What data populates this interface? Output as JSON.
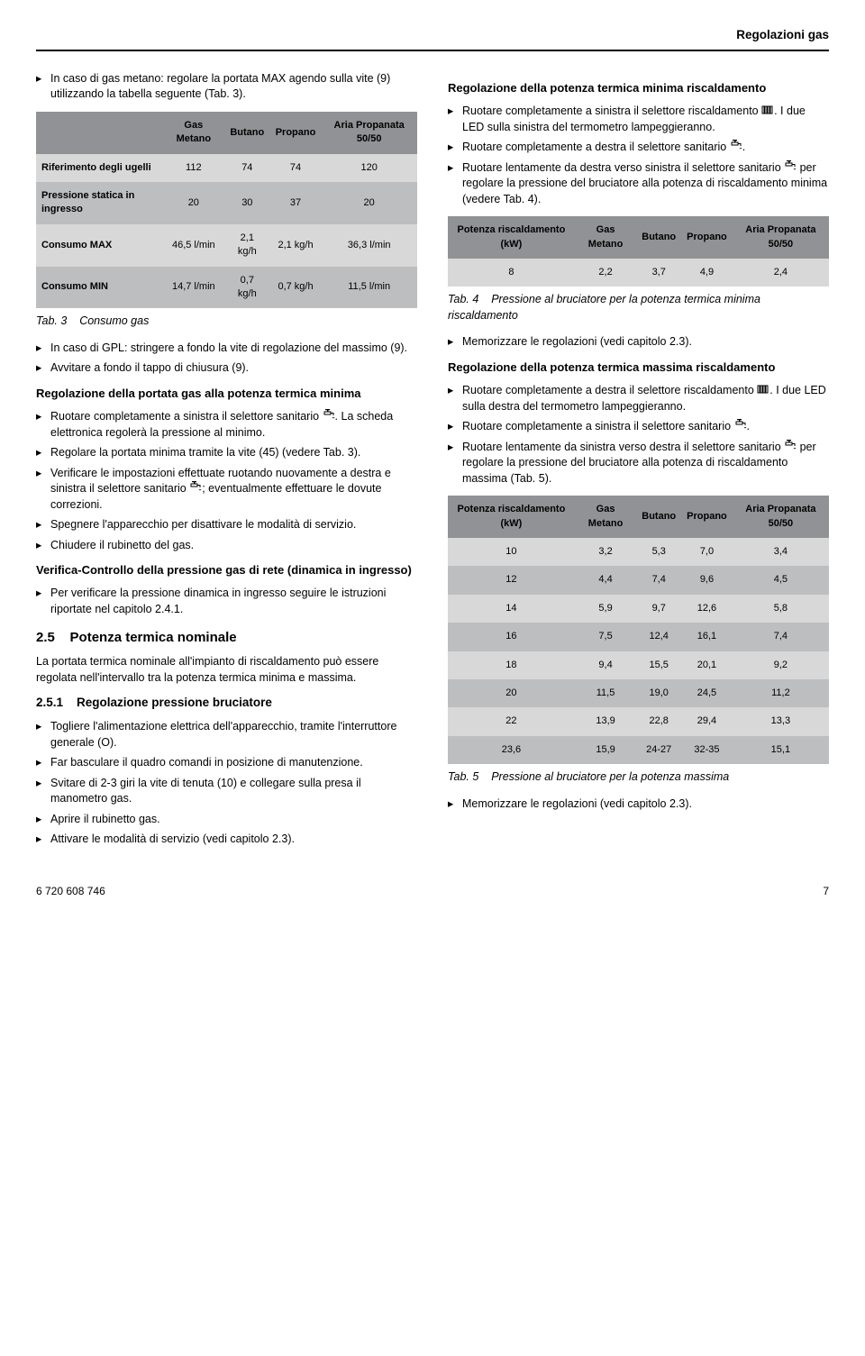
{
  "header": {
    "title": "Regolazioni gas"
  },
  "left": {
    "intro_li": "In caso di gas metano: regolare la portata MAX agendo sulla vite (9) utilizzando la tabella seguente (Tab. 3).",
    "table3": {
      "columns": [
        "",
        "Gas Metano",
        "Butano",
        "Propano",
        "Aria Propanata 50/50"
      ],
      "rows": [
        [
          "Riferimento degli ugelli",
          "112",
          "74",
          "74",
          "120"
        ],
        [
          "Pressione statica in ingresso",
          "20",
          "30",
          "37",
          "20"
        ],
        [
          "Consumo MAX",
          "46,5 l/min",
          "2,1 kg/h",
          "2,1 kg/h",
          "36,3 l/min"
        ],
        [
          "Consumo MIN",
          "14,7 l/min",
          "0,7 kg/h",
          "0,7 kg/h",
          "11,5 l/min"
        ]
      ],
      "caption_lbl": "Tab. 3",
      "caption_txt": "Consumo gas",
      "header_bg": "#919295",
      "row_odd_bg": "#d8d8d8",
      "row_even_bg": "#bdbebf"
    },
    "after_t3": [
      "In caso di GPL: stringere a fondo la vite di regolazione del massimo (9).",
      "Avvitare a fondo il tappo di chiusura (9)."
    ],
    "sub1_title": "Regolazione della portata gas alla potenza termica minima",
    "sub1_items": [
      "Ruotare completamente a sinistra il selettore sanitario {tap}. La scheda elettronica regolerà la pressione al minimo.",
      "Regolare la portata minima tramite la vite (45) (vedere Tab. 3).",
      "Verificare le impostazioni effettuate ruotando nuovamente a destra e sinistra il selettore sanitario {tap}; eventualmente effettuare le dovute correzioni.",
      "Spegnere l'apparecchio per disattivare le modalità di servizio.",
      "Chiudere il rubinetto del gas."
    ],
    "sub2_title": "Verifica-Controllo della pressione gas di rete (dinamica in ingresso)",
    "sub2_items": [
      "Per verificare la pressione dinamica in ingresso seguire le istruzioni riportate nel capitolo 2.4.1."
    ],
    "sec25_num": "2.5",
    "sec25_title": "Potenza termica nominale",
    "sec25_para": "La portata termica nominale all'impianto di riscaldamento può essere regolata nell'intervallo tra la potenza termica minima e massima.",
    "sec251_num": "2.5.1",
    "sec251_title": "Regolazione pressione bruciatore",
    "sec251_items": [
      "Togliere l'alimentazione elettrica dell'apparecchio, tramite l'interruttore generale (O).",
      "Far basculare il quadro comandi in posizione di manutenzione.",
      "Svitare di 2-3 giri la vite di tenuta (10) e collegare sulla presa il manometro gas.",
      "Aprire il rubinetto gas.",
      "Attivare le modalità di servizio (vedi capitolo 2.3)."
    ]
  },
  "right": {
    "sub1_title": "Regolazione della potenza termica minima riscaldamento",
    "sub1_items": [
      "Ruotare completamente a sinistra il selettore riscaldamento {rad}. I due LED sulla sinistra del termometro lampeggieranno.",
      "Ruotare completamente a destra il selettore sanitario {tap}.",
      "Ruotare lentamente da destra verso sinistra il selettore sanitario {tap} per regolare la pressione del bruciatore alla potenza di riscaldamento minima (vedere Tab. 4)."
    ],
    "table4": {
      "columns": [
        "Potenza riscaldamento (kW)",
        "Gas Metano",
        "Butano",
        "Propano",
        "Aria Propanata 50/50"
      ],
      "rows": [
        [
          "8",
          "2,2",
          "3,7",
          "4,9",
          "2,4"
        ]
      ],
      "caption_lbl": "Tab. 4",
      "caption_txt": "Pressione al bruciatore per la potenza termica minima riscaldamento"
    },
    "after_t4": [
      "Memorizzare le regolazioni (vedi capitolo 2.3)."
    ],
    "sub2_title": "Regolazione della potenza termica massima riscaldamento",
    "sub2_items": [
      "Ruotare completamente a destra il selettore riscaldamento {rad}. I due LED sulla destra del termometro lampeggieranno.",
      "Ruotare completamente a sinistra il selettore sanitario {tap}.",
      "Ruotare lentamente da sinistra verso destra il selettore sanitario {tap} per regolare la pressione del bruciatore alla potenza di riscaldamento massima (Tab. 5)."
    ],
    "table5": {
      "columns": [
        "Potenza riscaldamento (kW)",
        "Gas Metano",
        "Butano",
        "Propano",
        "Aria Propanata 50/50"
      ],
      "rows": [
        [
          "10",
          "3,2",
          "5,3",
          "7,0",
          "3,4"
        ],
        [
          "12",
          "4,4",
          "7,4",
          "9,6",
          "4,5"
        ],
        [
          "14",
          "5,9",
          "9,7",
          "12,6",
          "5,8"
        ],
        [
          "16",
          "7,5",
          "12,4",
          "16,1",
          "7,4"
        ],
        [
          "18",
          "9,4",
          "15,5",
          "20,1",
          "9,2"
        ],
        [
          "20",
          "11,5",
          "19,0",
          "24,5",
          "11,2"
        ],
        [
          "22",
          "13,9",
          "22,8",
          "29,4",
          "13,3"
        ],
        [
          "23,6",
          "15,9",
          "24-27",
          "32-35",
          "15,1"
        ]
      ],
      "caption_lbl": "Tab. 5",
      "caption_txt": "Pressione al bruciatore per la potenza massima"
    },
    "after_t5": [
      "Memorizzare le regolazioni (vedi capitolo 2.3)."
    ]
  },
  "footer": {
    "doc_no": "6 720 608 746",
    "page_no": "7"
  },
  "icons": {
    "radiator_svg": "<svg width='14' height='10' viewBox='0 0 14 10'><rect x='1' y='1' width='2' height='8' fill='none' stroke='#000' stroke-width='1'/><rect x='4' y='1' width='2' height='8' fill='none' stroke='#000' stroke-width='1'/><rect x='7' y='1' width='2' height='8' fill='none' stroke='#000' stroke-width='1'/><rect x='10' y='1' width='2' height='8' fill='none' stroke='#000' stroke-width='1'/></svg>",
    "tap_svg": "<svg width='14' height='12' viewBox='0 0 14 12'><rect x='2' y='3' width='7' height='3' fill='none' stroke='#000' stroke-width='1'/><rect x='5' y='0' width='1.5' height='3' fill='#000'/><rect x='3' y='0' width='5' height='1.2' fill='#000'/><path d='M9 4.5 L12 4.5 L12 7' fill='none' stroke='#000' stroke-width='1'/><path d='M11 9 Q12 11 13 9' fill='none' stroke='#000' stroke-width='0.8'/></svg>"
  }
}
